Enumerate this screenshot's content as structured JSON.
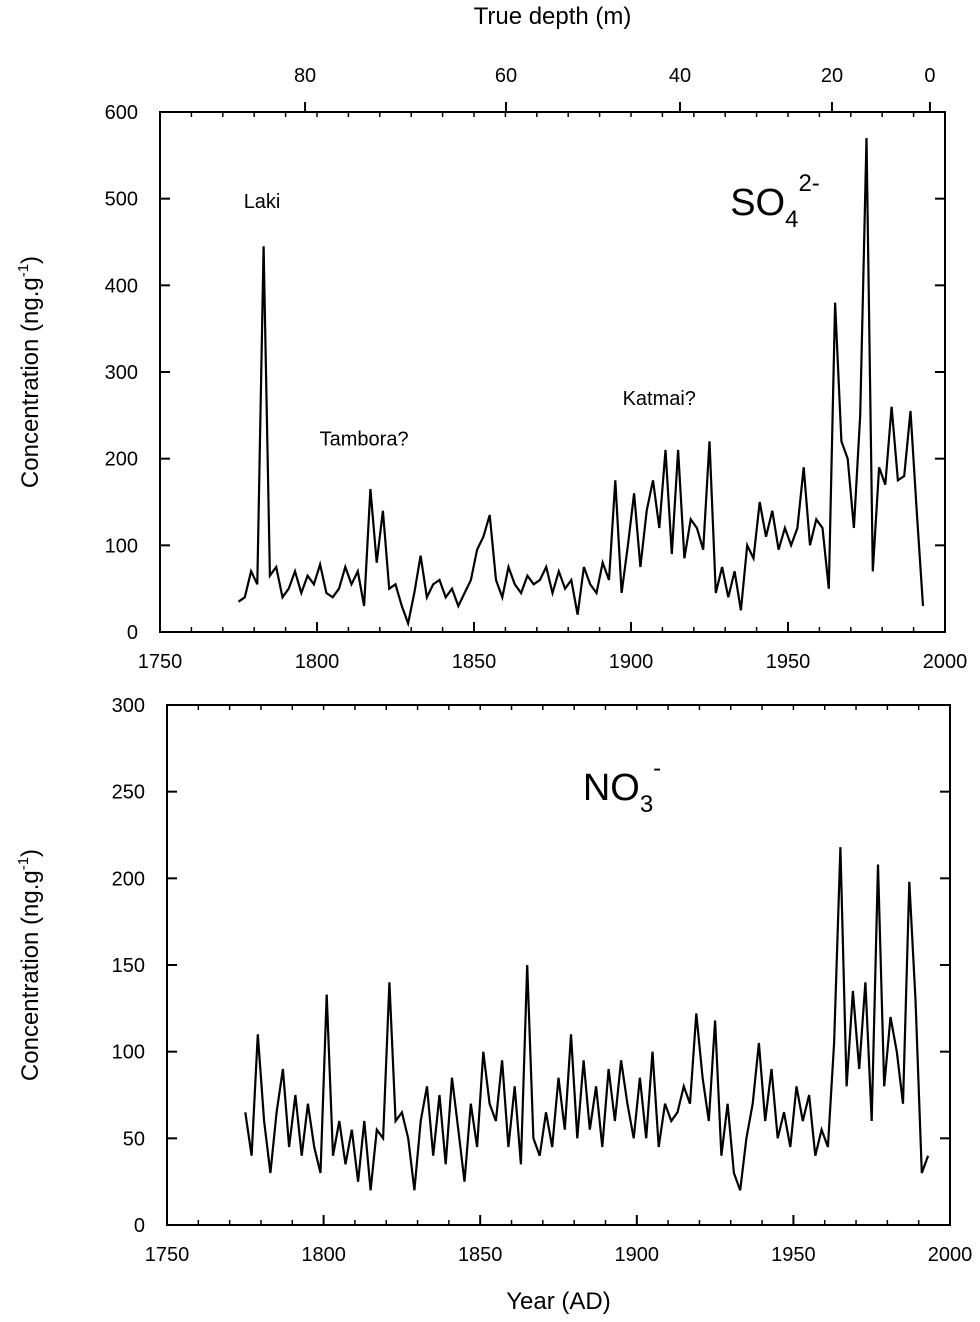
{
  "chart_data": [
    {
      "type": "line",
      "step": true,
      "color": "#000",
      "label": {
        "text": "SO",
        "sub": "4",
        "sup": "2-"
      },
      "ylabel": "Concentration (ng.g",
      "ylabel_sup": "-1",
      "ylabel_end": ")",
      "x2label": "True depth (m)",
      "x2ticks": [
        80,
        60,
        40,
        20,
        0
      ],
      "x2tick_years": [
        1796.2,
        1860.2,
        1915.6,
        1964.0,
        1995.2
      ],
      "xlim": [
        1750,
        2000
      ],
      "xticks": [
        1750,
        1800,
        1850,
        1900,
        1950,
        2000
      ],
      "ylim": [
        0,
        600
      ],
      "yticks": [
        0,
        100,
        200,
        300,
        400,
        500,
        600
      ],
      "annotations": [
        "Laki",
        "Tambora?",
        "Katmai?"
      ],
      "x": [
        1775,
        1777,
        1779,
        1781,
        1783,
        1785,
        1787,
        1789,
        1791,
        1793,
        1795,
        1797,
        1799,
        1801,
        1803,
        1805,
        1807,
        1809,
        1811,
        1813,
        1815,
        1817,
        1819,
        1821,
        1823,
        1825,
        1827,
        1829,
        1831,
        1833,
        1835,
        1837,
        1839,
        1841,
        1843,
        1845,
        1847,
        1849,
        1851,
        1853,
        1855,
        1857,
        1859,
        1861,
        1863,
        1865,
        1867,
        1869,
        1871,
        1873,
        1875,
        1877,
        1879,
        1881,
        1883,
        1885,
        1887,
        1889,
        1891,
        1893,
        1895,
        1897,
        1899,
        1901,
        1903,
        1905,
        1907,
        1909,
        1911,
        1913,
        1915,
        1917,
        1919,
        1921,
        1923,
        1925,
        1927,
        1929,
        1931,
        1933,
        1935,
        1937,
        1939,
        1941,
        1943,
        1945,
        1947,
        1949,
        1951,
        1953,
        1955,
        1957,
        1959,
        1961,
        1963,
        1965,
        1967,
        1969,
        1971,
        1973,
        1975,
        1977,
        1979,
        1981,
        1983,
        1985,
        1987,
        1989,
        1991,
        1993
      ],
      "values": [
        35,
        40,
        70,
        55,
        445,
        65,
        75,
        40,
        50,
        70,
        45,
        65,
        55,
        78,
        45,
        40,
        50,
        75,
        55,
        70,
        30,
        165,
        80,
        140,
        50,
        55,
        30,
        10,
        45,
        88,
        40,
        55,
        60,
        40,
        50,
        30,
        45,
        60,
        95,
        110,
        135,
        60,
        40,
        75,
        55,
        45,
        65,
        55,
        60,
        75,
        45,
        70,
        50,
        60,
        20,
        75,
        55,
        45,
        80,
        60,
        175,
        45,
        100,
        160,
        75,
        140,
        175,
        120,
        210,
        90,
        210,
        85,
        130,
        120,
        95,
        220,
        45,
        75,
        40,
        70,
        25,
        100,
        85,
        150,
        110,
        140,
        95,
        120,
        100,
        120,
        190,
        100,
        130,
        120,
        50,
        380,
        220,
        200,
        120,
        250,
        570,
        70,
        190,
        170,
        260,
        175,
        180,
        255,
        140,
        30
      ]
    },
    {
      "type": "line",
      "step": true,
      "color": "#000",
      "label": {
        "text": "NO",
        "sub": "3",
        "sup": "-"
      },
      "ylabel": "Concentration (ng.g",
      "ylabel_sup": "-1",
      "ylabel_end": ")",
      "xlabel": "Year (AD)",
      "xlim": [
        1750,
        2000
      ],
      "xticks": [
        1750,
        1800,
        1850,
        1900,
        1950,
        2000
      ],
      "ylim": [
        0,
        300
      ],
      "yticks": [
        0,
        50,
        100,
        150,
        200,
        250,
        300
      ],
      "x": [
        1775,
        1777,
        1779,
        1781,
        1783,
        1785,
        1787,
        1789,
        1791,
        1793,
        1795,
        1797,
        1799,
        1801,
        1803,
        1805,
        1807,
        1809,
        1811,
        1813,
        1815,
        1817,
        1819,
        1821,
        1823,
        1825,
        1827,
        1829,
        1831,
        1833,
        1835,
        1837,
        1839,
        1841,
        1843,
        1845,
        1847,
        1849,
        1851,
        1853,
        1855,
        1857,
        1859,
        1861,
        1863,
        1865,
        1867,
        1869,
        1871,
        1873,
        1875,
        1877,
        1879,
        1881,
        1883,
        1885,
        1887,
        1889,
        1891,
        1893,
        1895,
        1897,
        1899,
        1901,
        1903,
        1905,
        1907,
        1909,
        1911,
        1913,
        1915,
        1917,
        1919,
        1921,
        1923,
        1925,
        1927,
        1929,
        1931,
        1933,
        1935,
        1937,
        1939,
        1941,
        1943,
        1945,
        1947,
        1949,
        1951,
        1953,
        1955,
        1957,
        1959,
        1961,
        1963,
        1965,
        1967,
        1969,
        1971,
        1973,
        1975,
        1977,
        1979,
        1981,
        1983,
        1985,
        1987,
        1989,
        1991,
        1993
      ],
      "values": [
        65,
        40,
        110,
        60,
        30,
        65,
        90,
        45,
        75,
        40,
        70,
        45,
        30,
        133,
        40,
        60,
        35,
        55,
        25,
        60,
        20,
        55,
        50,
        140,
        60,
        65,
        50,
        20,
        60,
        80,
        40,
        75,
        35,
        85,
        55,
        25,
        70,
        45,
        100,
        70,
        60,
        95,
        45,
        80,
        35,
        150,
        50,
        40,
        65,
        45,
        85,
        55,
        110,
        50,
        95,
        55,
        80,
        45,
        90,
        60,
        95,
        70,
        50,
        85,
        50,
        100,
        45,
        70,
        60,
        65,
        80,
        70,
        122,
        85,
        60,
        118,
        40,
        70,
        30,
        20,
        50,
        70,
        105,
        60,
        90,
        50,
        65,
        45,
        80,
        60,
        75,
        40,
        55,
        45,
        105,
        218,
        80,
        135,
        90,
        140,
        60,
        208,
        80,
        120,
        100,
        70,
        198,
        130,
        30,
        40
      ]
    }
  ]
}
